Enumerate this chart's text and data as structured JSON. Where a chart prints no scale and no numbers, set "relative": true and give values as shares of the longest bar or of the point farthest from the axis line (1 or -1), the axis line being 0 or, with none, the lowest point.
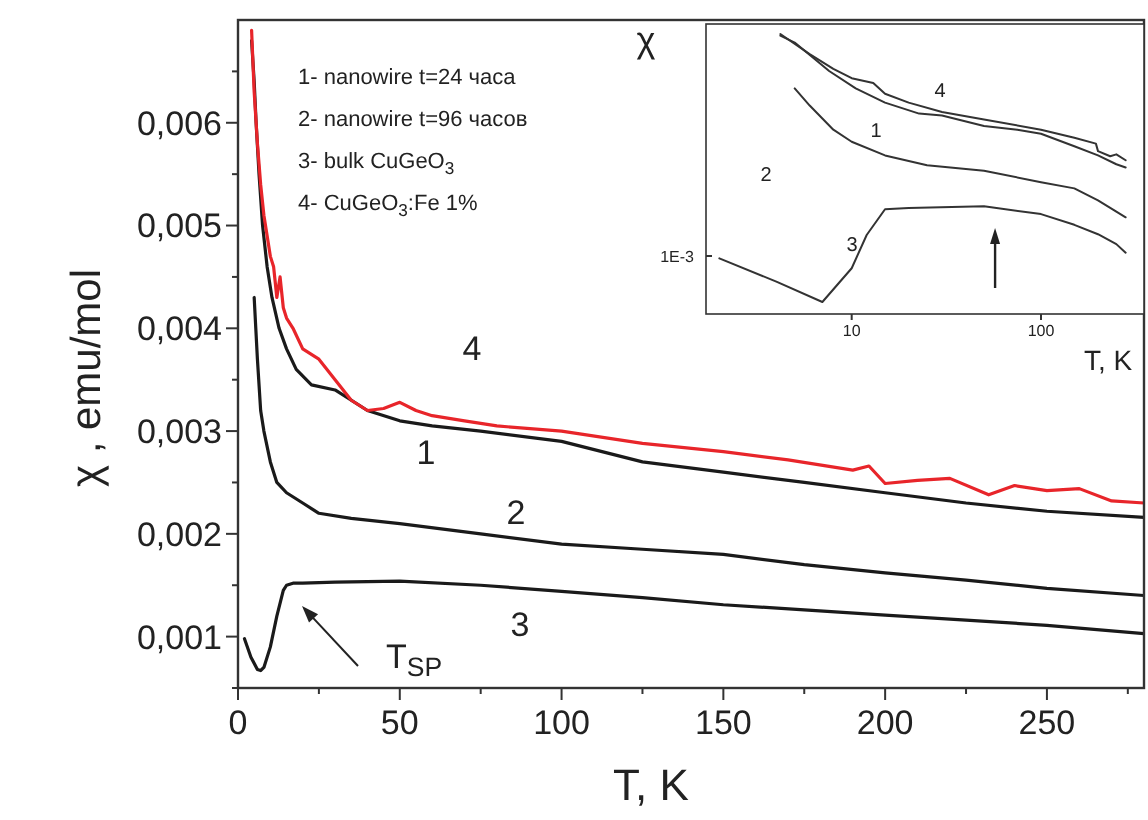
{
  "chart_data": [
    {
      "type": "line",
      "xlabel": "T, K",
      "ylabel": "χ , emu/mol",
      "xlim": [
        0,
        280
      ],
      "ylim": [
        0.0005,
        0.007
      ],
      "xticks": [
        0,
        {
          "value": 25,
          "label": null
        },
        50,
        {
          "value": 75,
          "label": null
        },
        100,
        {
          "value": 125,
          "label": null
        },
        150,
        {
          "value": 175,
          "label": null
        },
        200,
        {
          "value": 225,
          "label": null
        },
        250,
        {
          "value": 275,
          "label": null
        }
      ],
      "yticks": [
        {
          "value": 0.0005,
          "label": null
        },
        {
          "value": 0.001,
          "label": "0,001"
        },
        {
          "value": 0.0015,
          "label": null
        },
        {
          "value": 0.002,
          "label": "0,002"
        },
        {
          "value": 0.0025,
          "label": null
        },
        {
          "value": 0.003,
          "label": "0,003"
        },
        {
          "value": 0.0035,
          "label": null
        },
        {
          "value": 0.004,
          "label": "0,004"
        },
        {
          "value": 0.0045,
          "label": null
        },
        {
          "value": 0.005,
          "label": "0,005"
        },
        {
          "value": 0.0055,
          "label": null
        },
        {
          "value": 0.006,
          "label": "0,006"
        },
        {
          "value": 0.0065,
          "label": null
        }
      ],
      "grid": false,
      "marker": "none",
      "line_style": "solid",
      "series": [
        {
          "color": "#1a1a1a",
          "x": [
            4.2,
            5,
            5.6,
            6.5,
            7.6,
            9,
            10.5,
            12.7,
            15,
            18,
            22.7,
            30,
            40,
            50,
            60,
            75,
            100,
            125,
            150,
            175,
            200,
            225,
            250,
            280
          ],
          "values": [
            0.0068,
            0.0064,
            0.006,
            0.0055,
            0.005,
            0.0046,
            0.0043,
            0.004,
            0.0038,
            0.0036,
            0.00345,
            0.0034,
            0.0032,
            0.0031,
            0.00305,
            0.003,
            0.0029,
            0.0027,
            0.0026,
            0.0025,
            0.0024,
            0.0023,
            0.00222,
            0.00216
          ]
        },
        {
          "color": "#1a1a1a",
          "x": [
            5,
            5.5,
            6,
            7,
            8,
            10,
            12,
            15,
            20,
            25,
            35,
            50,
            75,
            100,
            125,
            150,
            175,
            200,
            225,
            250,
            280
          ],
          "values": [
            0.0043,
            0.004,
            0.0037,
            0.0032,
            0.003,
            0.0027,
            0.0025,
            0.0024,
            0.0023,
            0.0022,
            0.00215,
            0.0021,
            0.002,
            0.0019,
            0.00185,
            0.0018,
            0.0017,
            0.00162,
            0.00155,
            0.00147,
            0.0014
          ]
        },
        {
          "color": "#1a1a1a",
          "x": [
            2,
            4,
            6,
            7,
            8,
            10,
            12,
            14,
            15,
            17,
            20,
            30,
            50,
            75,
            100,
            125,
            150,
            175,
            200,
            225,
            250,
            280
          ],
          "values": [
            0.00098,
            0.0008,
            0.00068,
            0.00067,
            0.0007,
            0.0009,
            0.0012,
            0.00145,
            0.0015,
            0.00152,
            0.00152,
            0.00153,
            0.00154,
            0.0015,
            0.00144,
            0.00138,
            0.00131,
            0.00126,
            0.00121,
            0.00116,
            0.00111,
            0.00103
          ]
        },
        {
          "color": "#e8252a",
          "x": [
            4.2,
            5,
            6,
            7,
            8,
            9,
            10,
            11,
            12,
            13,
            14,
            15,
            17,
            20,
            25,
            30,
            35,
            40,
            45,
            50,
            55,
            60,
            70,
            80,
            100,
            125,
            150,
            170,
            190,
            195,
            200,
            210,
            220,
            232,
            240,
            250,
            260,
            270,
            280
          ],
          "values": [
            0.0069,
            0.0063,
            0.0058,
            0.0054,
            0.0051,
            0.0049,
            0.0047,
            0.0046,
            0.0043,
            0.0045,
            0.0042,
            0.0041,
            0.004,
            0.0038,
            0.0037,
            0.0035,
            0.0033,
            0.0032,
            0.00322,
            0.00328,
            0.0032,
            0.00315,
            0.0031,
            0.00305,
            0.003,
            0.00288,
            0.0028,
            0.00272,
            0.00262,
            0.00266,
            0.00249,
            0.00252,
            0.00254,
            0.00238,
            0.00247,
            0.00242,
            0.00244,
            0.00232,
            0.0023
          ]
        }
      ],
      "annotations": [
        "1- nanowire t=24 часа",
        "2- nanowire t=96 часов",
        "3- bulk CuGeO$_{3}$",
        "4- CuGeO$_{3}$:Fe 1%",
        "4",
        "1",
        "2",
        "3",
        "T$_{SP}$"
      ]
    },
    {
      "type": "line",
      "xlabel": "T, K",
      "ylabel": "χ",
      "log": "x",
      "relative": true,
      "xlim": [
        1.7,
        350
      ],
      "xticks": [
        10,
        100
      ],
      "grid": false,
      "marker": "none",
      "line_style": "solid",
      "series": [
        {
          "color": "#333333",
          "x": [
            4.2,
            5,
            7.6,
            10.5,
            15,
            22.7,
            30,
            50,
            75,
            100,
            150,
            200,
            250,
            280
          ],
          "values": [
            0.994,
            0.968,
            0.862,
            0.797,
            0.744,
            0.703,
            0.696,
            0.657,
            0.643,
            0.628,
            0.581,
            0.547,
            0.514,
            0.502
          ]
        },
        {
          "color": "#333333",
          "x": [
            5,
            6,
            8,
            10,
            15,
            25,
            50,
            100,
            150,
            200,
            250,
            280
          ],
          "values": [
            0.797,
            0.733,
            0.643,
            0.598,
            0.547,
            0.51,
            0.49,
            0.447,
            0.424,
            0.379,
            0.337,
            0.316
          ]
        },
        {
          "color": "#333333",
          "x": [
            2,
            4,
            7,
            10,
            12,
            15,
            20,
            50,
            100,
            150,
            200,
            250,
            280
          ],
          "values": [
            0.163,
            0.076,
            0,
            0.126,
            0.25,
            0.346,
            0.351,
            0.357,
            0.328,
            0.288,
            0.253,
            0.216,
            0.184
          ]
        },
        {
          "color": "#333333",
          "x": [
            4.2,
            6,
            8,
            10,
            13,
            15,
            20,
            30,
            50,
            100,
            150,
            195,
            200,
            232,
            250,
            280
          ],
          "values": [
            1,
            0.925,
            0.87,
            0.835,
            0.817,
            0.777,
            0.744,
            0.709,
            0.681,
            0.643,
            0.613,
            0.591,
            0.563,
            0.544,
            0.551,
            0.529
          ]
        }
      ],
      "annotations": [
        "4",
        "1",
        "2",
        "3",
        "1E-3"
      ]
    }
  ]
}
